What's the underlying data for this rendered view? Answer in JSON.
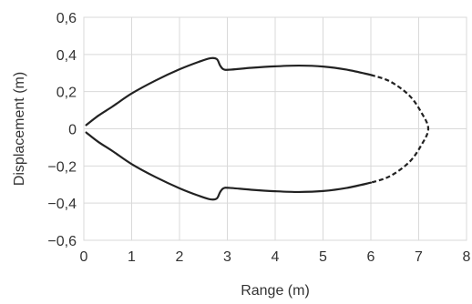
{
  "chart_data": {
    "type": "line",
    "title": "",
    "xlabel": "Range (m)",
    "ylabel": "Displacement (m)",
    "xlim": [
      0,
      8
    ],
    "ylim": [
      -0.6,
      0.6
    ],
    "grid": true,
    "legend": "none",
    "x_ticks": [
      0,
      1,
      2,
      3,
      4,
      5,
      6,
      7,
      8
    ],
    "y_ticks": [
      -0.6,
      -0.4,
      -0.2,
      0,
      0.2,
      0.4,
      0.6
    ],
    "x_tick_labels": [
      "0",
      "1",
      "2",
      "3",
      "4",
      "5",
      "6",
      "7",
      "8"
    ],
    "y_tick_labels": [
      "−0,6",
      "−0,4",
      "−0,2",
      "0",
      "0,2",
      "0,4",
      "0,6"
    ],
    "colors": {
      "line": "#222222",
      "grid": "#d9d9d9",
      "text": "#333333"
    },
    "series": [
      {
        "style": "solid",
        "x": [
          0.05,
          0.3,
          0.6,
          1.0,
          1.5,
          2.0,
          2.4,
          2.65,
          2.78,
          2.85,
          2.92,
          3.05,
          3.5,
          4.0,
          4.5,
          5.0,
          5.5,
          6.0
        ],
        "y": [
          0.02,
          0.07,
          0.12,
          0.19,
          0.26,
          0.32,
          0.36,
          0.38,
          0.375,
          0.34,
          0.32,
          0.318,
          0.328,
          0.336,
          0.34,
          0.335,
          0.318,
          0.29
        ]
      },
      {
        "style": "solid",
        "x": [
          0.05,
          0.3,
          0.6,
          1.0,
          1.5,
          2.0,
          2.4,
          2.65,
          2.78,
          2.85,
          2.92,
          3.05,
          3.5,
          4.0,
          4.5,
          5.0,
          5.5,
          6.0
        ],
        "y": [
          -0.02,
          -0.07,
          -0.12,
          -0.19,
          -0.26,
          -0.32,
          -0.36,
          -0.38,
          -0.375,
          -0.34,
          -0.32,
          -0.318,
          -0.328,
          -0.336,
          -0.34,
          -0.335,
          -0.318,
          -0.29
        ]
      },
      {
        "style": "dashed",
        "x": [
          6.0,
          6.4,
          6.8,
          7.05,
          7.2,
          7.05,
          6.8,
          6.4,
          6.0
        ],
        "y": [
          0.29,
          0.255,
          0.18,
          0.09,
          0.0,
          -0.09,
          -0.18,
          -0.255,
          -0.29
        ]
      }
    ]
  }
}
